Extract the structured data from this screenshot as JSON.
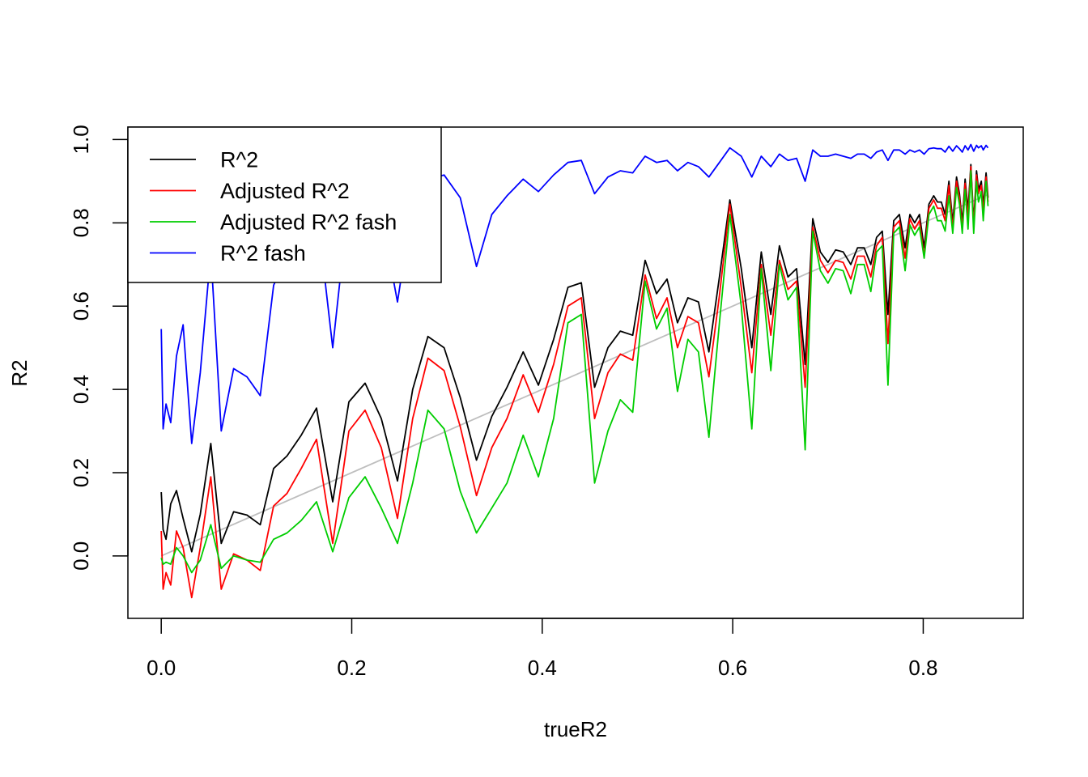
{
  "chart_data": {
    "type": "line",
    "title": "",
    "xlabel": "trueR2",
    "ylabel": "R2",
    "xlim": [
      -0.035,
      0.905
    ],
    "ylim": [
      -0.15,
      1.03
    ],
    "xticks": [
      {
        "value": 0.0,
        "label": "0.0"
      },
      {
        "value": 0.2,
        "label": "0.2"
      },
      {
        "value": 0.4,
        "label": "0.4"
      },
      {
        "value": 0.6,
        "label": "0.6"
      },
      {
        "value": 0.8,
        "label": "0.8"
      }
    ],
    "yticks": [
      {
        "value": 0.0,
        "label": "0.0"
      },
      {
        "value": 0.2,
        "label": "0.2"
      },
      {
        "value": 0.4,
        "label": "0.4"
      },
      {
        "value": 0.6,
        "label": "0.6"
      },
      {
        "value": 0.8,
        "label": "0.8"
      },
      {
        "value": 1.0,
        "label": "1.0"
      }
    ],
    "grid": false,
    "legend_position": "top-left",
    "x": [
      0.0,
      0.002,
      0.005,
      0.01,
      0.016,
      0.023,
      0.032,
      0.041,
      0.052,
      0.063,
      0.076,
      0.09,
      0.104,
      0.118,
      0.132,
      0.147,
      0.163,
      0.18,
      0.197,
      0.214,
      0.231,
      0.248,
      0.264,
      0.28,
      0.297,
      0.314,
      0.331,
      0.347,
      0.363,
      0.38,
      0.396,
      0.412,
      0.427,
      0.441,
      0.455,
      0.469,
      0.482,
      0.495,
      0.508,
      0.52,
      0.531,
      0.542,
      0.553,
      0.564,
      0.575,
      0.586,
      0.597,
      0.609,
      0.62,
      0.63,
      0.64,
      0.649,
      0.658,
      0.667,
      0.676,
      0.684,
      0.692,
      0.7,
      0.708,
      0.716,
      0.724,
      0.731,
      0.738,
      0.745,
      0.751,
      0.757,
      0.763,
      0.769,
      0.775,
      0.781,
      0.786,
      0.791,
      0.796,
      0.801,
      0.806,
      0.811,
      0.815,
      0.819,
      0.823,
      0.827,
      0.831,
      0.835,
      0.838,
      0.841,
      0.844,
      0.847,
      0.85,
      0.853,
      0.856,
      0.858,
      0.861,
      0.863,
      0.866,
      0.868
    ],
    "series": [
      {
        "name": "R^2",
        "color": "#000000",
        "values": [
          0.153,
          0.063,
          0.04,
          0.125,
          0.157,
          0.09,
          0.01,
          0.1,
          0.27,
          0.03,
          0.106,
          0.098,
          0.075,
          0.21,
          0.24,
          0.29,
          0.355,
          0.13,
          0.37,
          0.415,
          0.33,
          0.18,
          0.4,
          0.527,
          0.5,
          0.38,
          0.23,
          0.335,
          0.405,
          0.49,
          0.41,
          0.52,
          0.645,
          0.656,
          0.405,
          0.5,
          0.54,
          0.53,
          0.71,
          0.63,
          0.665,
          0.56,
          0.62,
          0.61,
          0.49,
          0.67,
          0.855,
          0.69,
          0.5,
          0.73,
          0.58,
          0.745,
          0.67,
          0.69,
          0.46,
          0.81,
          0.73,
          0.705,
          0.735,
          0.73,
          0.7,
          0.74,
          0.74,
          0.7,
          0.765,
          0.78,
          0.58,
          0.805,
          0.82,
          0.74,
          0.82,
          0.8,
          0.82,
          0.74,
          0.845,
          0.865,
          0.85,
          0.85,
          0.82,
          0.9,
          0.8,
          0.91,
          0.87,
          0.8,
          0.905,
          0.83,
          0.94,
          0.8,
          0.925,
          0.88,
          0.9,
          0.84,
          0.92,
          0.86
        ]
      },
      {
        "name": "Adjusted R^2",
        "color": "#ff0000",
        "values": [
          0.06,
          -0.08,
          -0.04,
          -0.07,
          0.06,
          0.02,
          -0.1,
          0.02,
          0.19,
          -0.08,
          0.005,
          -0.01,
          -0.035,
          0.12,
          0.15,
          0.21,
          0.28,
          0.03,
          0.3,
          0.35,
          0.26,
          0.09,
          0.33,
          0.475,
          0.445,
          0.31,
          0.145,
          0.26,
          0.33,
          0.435,
          0.345,
          0.46,
          0.6,
          0.62,
          0.33,
          0.44,
          0.485,
          0.47,
          0.675,
          0.57,
          0.62,
          0.5,
          0.575,
          0.56,
          0.43,
          0.625,
          0.845,
          0.645,
          0.44,
          0.7,
          0.53,
          0.71,
          0.64,
          0.66,
          0.405,
          0.79,
          0.71,
          0.68,
          0.71,
          0.705,
          0.665,
          0.72,
          0.72,
          0.67,
          0.745,
          0.765,
          0.51,
          0.79,
          0.805,
          0.715,
          0.81,
          0.785,
          0.805,
          0.72,
          0.835,
          0.855,
          0.835,
          0.835,
          0.805,
          0.89,
          0.785,
          0.9,
          0.86,
          0.785,
          0.895,
          0.81,
          0.935,
          0.79,
          0.915,
          0.87,
          0.89,
          0.825,
          0.91,
          0.85
        ]
      },
      {
        "name": "Adjusted R^2 fash",
        "color": "#00cd00",
        "values": [
          -0.005,
          -0.02,
          -0.015,
          -0.02,
          0.02,
          0.0,
          -0.04,
          -0.01,
          0.075,
          -0.03,
          0.0,
          -0.01,
          -0.015,
          0.04,
          0.055,
          0.085,
          0.13,
          0.01,
          0.14,
          0.19,
          0.115,
          0.03,
          0.175,
          0.35,
          0.305,
          0.155,
          0.055,
          0.115,
          0.175,
          0.29,
          0.19,
          0.33,
          0.56,
          0.58,
          0.175,
          0.3,
          0.375,
          0.345,
          0.66,
          0.545,
          0.595,
          0.395,
          0.52,
          0.49,
          0.285,
          0.56,
          0.82,
          0.6,
          0.305,
          0.69,
          0.445,
          0.7,
          0.615,
          0.645,
          0.255,
          0.78,
          0.685,
          0.655,
          0.69,
          0.685,
          0.63,
          0.7,
          0.7,
          0.635,
          0.73,
          0.745,
          0.41,
          0.775,
          0.79,
          0.685,
          0.795,
          0.77,
          0.79,
          0.715,
          0.82,
          0.84,
          0.805,
          0.805,
          0.78,
          0.865,
          0.775,
          0.885,
          0.845,
          0.775,
          0.88,
          0.785,
          0.925,
          0.775,
          0.9,
          0.85,
          0.875,
          0.805,
          0.9,
          0.84
        ]
      },
      {
        "name": "R^2 fash",
        "color": "#0000ff",
        "values": [
          0.545,
          0.305,
          0.365,
          0.32,
          0.48,
          0.555,
          0.27,
          0.44,
          0.73,
          0.3,
          0.45,
          0.43,
          0.385,
          0.65,
          0.72,
          0.8,
          0.84,
          0.5,
          0.86,
          0.88,
          0.82,
          0.61,
          0.85,
          0.905,
          0.915,
          0.86,
          0.695,
          0.82,
          0.865,
          0.905,
          0.875,
          0.915,
          0.945,
          0.95,
          0.87,
          0.91,
          0.925,
          0.92,
          0.96,
          0.945,
          0.95,
          0.925,
          0.945,
          0.935,
          0.91,
          0.945,
          0.98,
          0.96,
          0.91,
          0.96,
          0.935,
          0.965,
          0.95,
          0.955,
          0.9,
          0.975,
          0.96,
          0.96,
          0.965,
          0.96,
          0.955,
          0.965,
          0.965,
          0.955,
          0.97,
          0.975,
          0.95,
          0.975,
          0.975,
          0.965,
          0.975,
          0.97,
          0.975,
          0.965,
          0.978,
          0.98,
          0.978,
          0.978,
          0.97,
          0.984,
          0.972,
          0.985,
          0.978,
          0.97,
          0.985,
          0.975,
          0.988,
          0.972,
          0.986,
          0.98,
          0.985,
          0.975,
          0.986,
          0.98
        ]
      }
    ],
    "reference_line": {
      "color": "#bebebe",
      "x": [
        0.0,
        0.868
      ],
      "y": [
        0.0,
        0.868
      ]
    }
  }
}
